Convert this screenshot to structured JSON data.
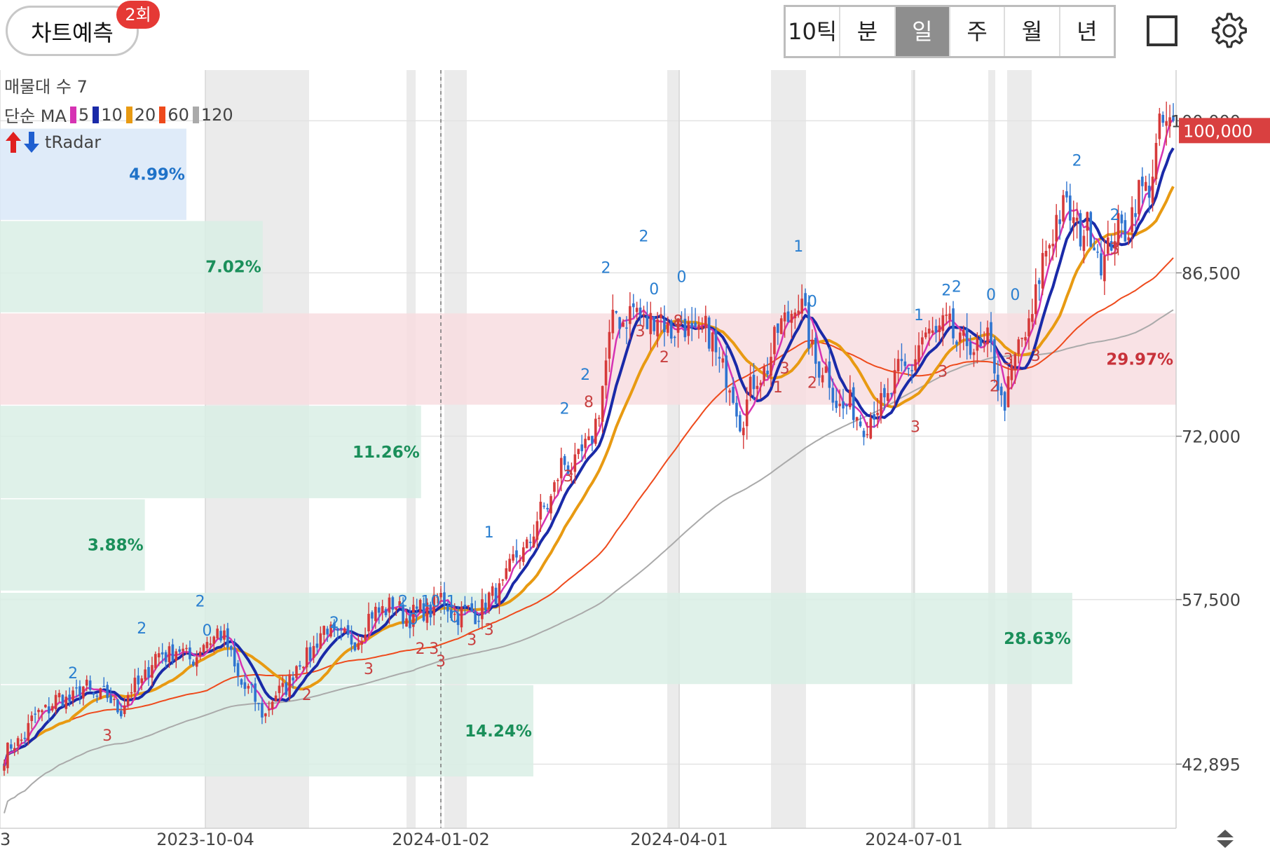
{
  "toolbar": {
    "predict_label": "차트예측",
    "predict_badge": "2회",
    "tabs": [
      "10틱",
      "분",
      "일",
      "주",
      "월",
      "년"
    ],
    "active_tab": "일",
    "icons": [
      "square-icon",
      "gear-icon"
    ]
  },
  "legend": {
    "volume_profile": "매물대 수 7",
    "ma_prefix": "단순 MA",
    "ma": [
      {
        "period": "5",
        "color": "#d633b3"
      },
      {
        "period": "10",
        "color": "#1a2aa8"
      },
      {
        "period": "20",
        "color": "#e89a12"
      },
      {
        "period": "60",
        "color": "#ee4a1c"
      },
      {
        "period": "120",
        "color": "#aaaaaa"
      }
    ],
    "radar": "tRadar",
    "radar_icons": [
      "arrow-up-icon",
      "arrow-down-icon"
    ]
  },
  "chart_data": {
    "type": "candlestick",
    "y_ticks": [
      "100,000",
      "86,500",
      "72,000",
      "57,500",
      "42,895"
    ],
    "y_tick_values": [
      100000,
      86500,
      72000,
      57500,
      42895
    ],
    "ylim": [
      37200,
      104500
    ],
    "x_ticks": [
      "3",
      "2023-10-04",
      "2024-01-02",
      "2024-04-01",
      "2024-07-01"
    ],
    "current_price": "100,000",
    "current_price_color": "#d94040",
    "volume_profile": [
      {
        "low": 91200,
        "high": 99300,
        "percent": "4.99%",
        "ratio": 0.166,
        "color": "blue"
      },
      {
        "low": 83000,
        "high": 91100,
        "percent": "7.02%",
        "ratio": 0.234,
        "color": "green"
      },
      {
        "low": 74800,
        "high": 82900,
        "percent": "29.97%",
        "ratio": 1.0,
        "color": "red"
      },
      {
        "low": 66500,
        "high": 74700,
        "percent": "11.26%",
        "ratio": 0.375,
        "color": "green"
      },
      {
        "low": 58300,
        "high": 66400,
        "percent": "3.88%",
        "ratio": 0.129,
        "color": "green"
      },
      {
        "low": 50000,
        "high": 58100,
        "percent": "28.63%",
        "ratio": 0.955,
        "color": "green"
      },
      {
        "low": 41800,
        "high": 49900,
        "percent": "14.24%",
        "ratio": 0.475,
        "color": "green"
      }
    ],
    "price_path": [
      [
        0,
        43500
      ],
      [
        12,
        48000
      ],
      [
        24,
        49500
      ],
      [
        34,
        48000
      ],
      [
        46,
        53000
      ],
      [
        56,
        52500
      ],
      [
        62,
        55000
      ],
      [
        70,
        49500
      ],
      [
        76,
        47500
      ],
      [
        84,
        51000
      ],
      [
        94,
        55000
      ],
      [
        100,
        53500
      ],
      [
        110,
        57000
      ],
      [
        120,
        56000
      ],
      [
        126,
        57500
      ],
      [
        134,
        56000
      ],
      [
        142,
        57500
      ],
      [
        154,
        63500
      ],
      [
        162,
        69000
      ],
      [
        170,
        70500
      ],
      [
        178,
        83000
      ],
      [
        188,
        82500
      ],
      [
        198,
        81500
      ],
      [
        206,
        80500
      ],
      [
        214,
        74000
      ],
      [
        224,
        80000
      ],
      [
        230,
        84500
      ],
      [
        236,
        79000
      ],
      [
        244,
        74500
      ],
      [
        252,
        73500
      ],
      [
        260,
        77000
      ],
      [
        270,
        81500
      ],
      [
        276,
        81000
      ],
      [
        282,
        79500
      ],
      [
        286,
        80500
      ],
      [
        290,
        75000
      ],
      [
        298,
        82000
      ],
      [
        306,
        92000
      ],
      [
        314,
        90500
      ],
      [
        320,
        88000
      ],
      [
        326,
        91000
      ],
      [
        332,
        94000
      ],
      [
        336,
        98500
      ],
      [
        340,
        100000
      ]
    ],
    "signal_marks": [
      {
        "x": 20,
        "price": 50500,
        "label": "2",
        "side": "above"
      },
      {
        "x": 30,
        "price": 45600,
        "label": "3",
        "side": "below"
      },
      {
        "x": 40,
        "price": 54500,
        "label": "2",
        "side": "above"
      },
      {
        "x": 57,
        "price": 56900,
        "label": "2",
        "side": "above"
      },
      {
        "x": 59,
        "price": 54300,
        "label": "0",
        "side": "above"
      },
      {
        "x": 88,
        "price": 49200,
        "label": "2",
        "side": "below"
      },
      {
        "x": 96,
        "price": 55000,
        "label": "2",
        "side": "above"
      },
      {
        "x": 106,
        "price": 51500,
        "label": "3",
        "side": "below"
      },
      {
        "x": 116,
        "price": 56900,
        "label": "2",
        "side": "above"
      },
      {
        "x": 119,
        "price": 55300,
        "label": "0",
        "side": "above"
      },
      {
        "x": 121,
        "price": 53300,
        "label": "2",
        "side": "below"
      },
      {
        "x": 124,
        "price": 56900,
        "label": "10",
        "side": "above"
      },
      {
        "x": 125,
        "price": 53300,
        "label": "3",
        "side": "below"
      },
      {
        "x": 127,
        "price": 52200,
        "label": "3",
        "side": "below"
      },
      {
        "x": 130,
        "price": 56900,
        "label": "1",
        "side": "above"
      },
      {
        "x": 131,
        "price": 55500,
        "label": "0",
        "side": "above"
      },
      {
        "x": 136,
        "price": 54100,
        "label": "3",
        "side": "below"
      },
      {
        "x": 141,
        "price": 55000,
        "label": "3",
        "side": "below"
      },
      {
        "x": 141,
        "price": 63000,
        "label": "1",
        "side": "above"
      },
      {
        "x": 164,
        "price": 68600,
        "label": "3",
        "side": "below"
      },
      {
        "x": 163,
        "price": 74000,
        "label": "2",
        "side": "above"
      },
      {
        "x": 169,
        "price": 77000,
        "label": "2",
        "side": "above"
      },
      {
        "x": 170,
        "price": 75200,
        "label": "8",
        "side": "below"
      },
      {
        "x": 175,
        "price": 86500,
        "label": "2",
        "side": "above"
      },
      {
        "x": 186,
        "price": 89300,
        "label": "2",
        "side": "above"
      },
      {
        "x": 185,
        "price": 81500,
        "label": "3",
        "side": "below"
      },
      {
        "x": 189,
        "price": 84600,
        "label": "0",
        "side": "above"
      },
      {
        "x": 192,
        "price": 79200,
        "label": "2",
        "side": "below"
      },
      {
        "x": 197,
        "price": 85700,
        "label": "0",
        "side": "above"
      },
      {
        "x": 196,
        "price": 82400,
        "label": "8",
        "side": "below"
      },
      {
        "x": 231,
        "price": 88400,
        "label": "1",
        "side": "above"
      },
      {
        "x": 227,
        "price": 78200,
        "label": "3",
        "side": "below"
      },
      {
        "x": 225,
        "price": 76500,
        "label": "1",
        "side": "below"
      },
      {
        "x": 235,
        "price": 83500,
        "label": "0",
        "side": "above"
      },
      {
        "x": 235,
        "price": 76900,
        "label": "2",
        "side": "below"
      },
      {
        "x": 265,
        "price": 73000,
        "label": "3",
        "side": "below"
      },
      {
        "x": 266,
        "price": 82300,
        "label": "1",
        "side": "above"
      },
      {
        "x": 273,
        "price": 77900,
        "label": "3",
        "side": "below"
      },
      {
        "x": 274,
        "price": 84500,
        "label": "2",
        "side": "above"
      },
      {
        "x": 277,
        "price": 84800,
        "label": "2",
        "side": "above"
      },
      {
        "x": 287,
        "price": 84100,
        "label": "0",
        "side": "above"
      },
      {
        "x": 292,
        "price": 79000,
        "label": "3",
        "side": "below"
      },
      {
        "x": 294,
        "price": 84100,
        "label": "0",
        "side": "above"
      },
      {
        "x": 288,
        "price": 76600,
        "label": "2",
        "side": "below"
      },
      {
        "x": 300,
        "price": 79300,
        "label": "3",
        "side": "below"
      },
      {
        "x": 312,
        "price": 96000,
        "label": "2",
        "side": "above"
      },
      {
        "x": 323,
        "price": 88800,
        "label": "3",
        "side": "below"
      },
      {
        "x": 323,
        "price": 91200,
        "label": "2",
        "side": "above"
      }
    ]
  }
}
